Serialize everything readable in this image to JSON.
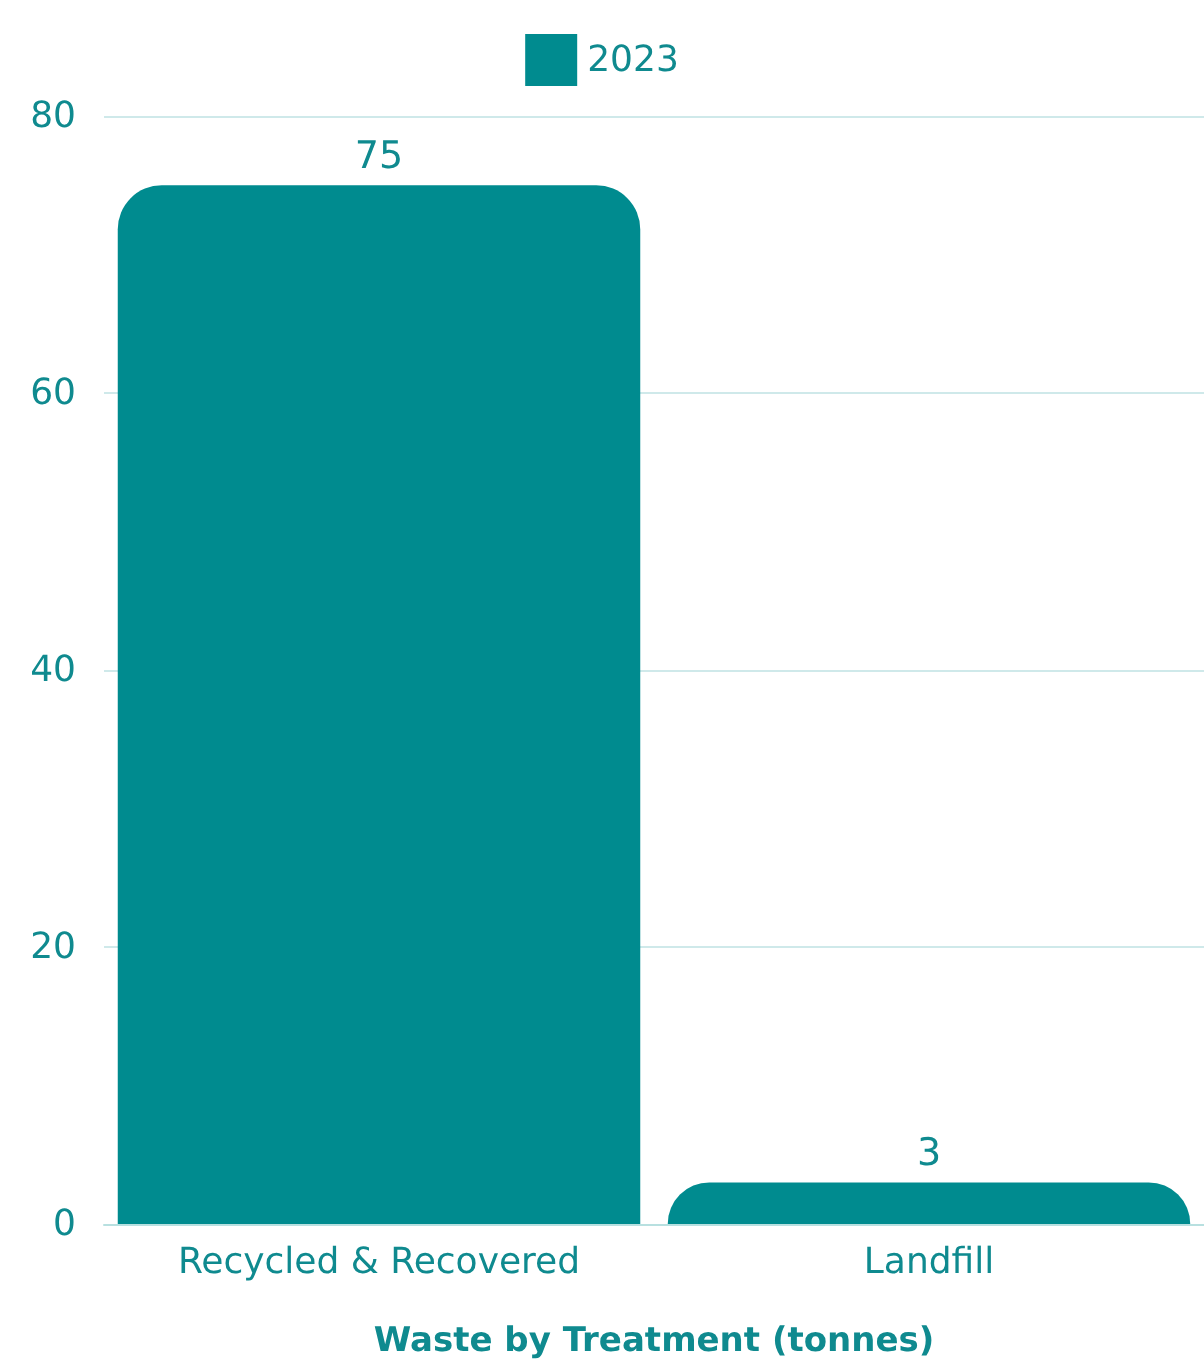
{
  "chart_data": {
    "type": "bar",
    "xlabel": "Waste by Treatment (tonnes)",
    "categories": [
      "Recycled & Recovered",
      "Landfill"
    ],
    "series": [
      {
        "name": "2023",
        "color": "#008b8f",
        "values": [
          75,
          3
        ]
      }
    ],
    "ylim": [
      0,
      80
    ],
    "yticks": [
      0,
      20,
      40,
      60,
      80
    ],
    "grid": "y",
    "legend": "top",
    "data_labels": true
  }
}
